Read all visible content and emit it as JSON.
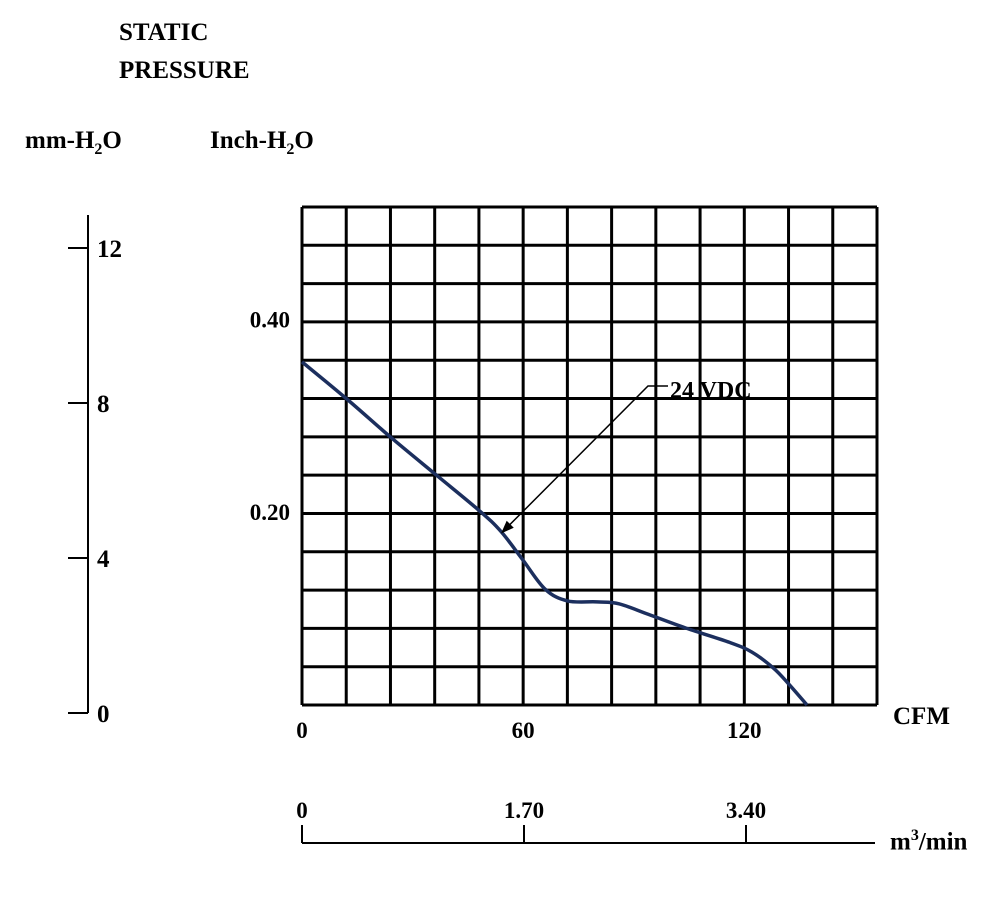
{
  "header": {
    "title_line1": "STATIC",
    "title_line2": "PRESSURE",
    "unit_left_prefix": "mm-H",
    "unit_left_sub": "2",
    "unit_left_suffix": "O",
    "unit_right_prefix": "Inch-H",
    "unit_right_sub": "2",
    "unit_right_suffix": "O"
  },
  "x_units": {
    "cfm": "CFM",
    "m3_prefix": "m",
    "m3_sup": "3",
    "m3_suffix": "/min"
  },
  "chart_data": {
    "type": "line",
    "title": "STATIC PRESSURE",
    "xlabel": "CFM",
    "ylabel": "Inch-H2O",
    "xlim": [
      0,
      156
    ],
    "ylim": [
      0,
      0.5167
    ],
    "grid": true,
    "x_ticks": [
      "0",
      "60",
      "120"
    ],
    "x_tick_values": [
      0,
      60,
      120
    ],
    "y_ticks": [
      "0.20",
      "0.40"
    ],
    "y_tick_values": [
      0.2,
      0.4
    ],
    "mm_ticks": [
      "0",
      "4",
      "8",
      "12"
    ],
    "mm_tick_values": [
      0,
      4,
      8,
      12
    ],
    "m3_ticks": [
      "0",
      "1.70",
      "3.40"
    ],
    "m3_tick_values": [
      0,
      1.7,
      3.4
    ],
    "series": [
      {
        "name": "24 VDC",
        "color": "#1c2f5e",
        "x": [
          0,
          12,
          24,
          36,
          48,
          54,
          60,
          66,
          72,
          80,
          86,
          94,
          104,
          116,
          122,
          128,
          132,
          137
        ],
        "y": [
          0.356,
          0.318,
          0.278,
          0.24,
          0.202,
          0.18,
          0.15,
          0.12,
          0.108,
          0.107,
          0.105,
          0.094,
          0.08,
          0.065,
          0.055,
          0.038,
          0.022,
          0.0
        ]
      }
    ],
    "annotations": [
      {
        "text": "24 VDC",
        "target_x": 54,
        "target_y": 0.178
      }
    ]
  }
}
